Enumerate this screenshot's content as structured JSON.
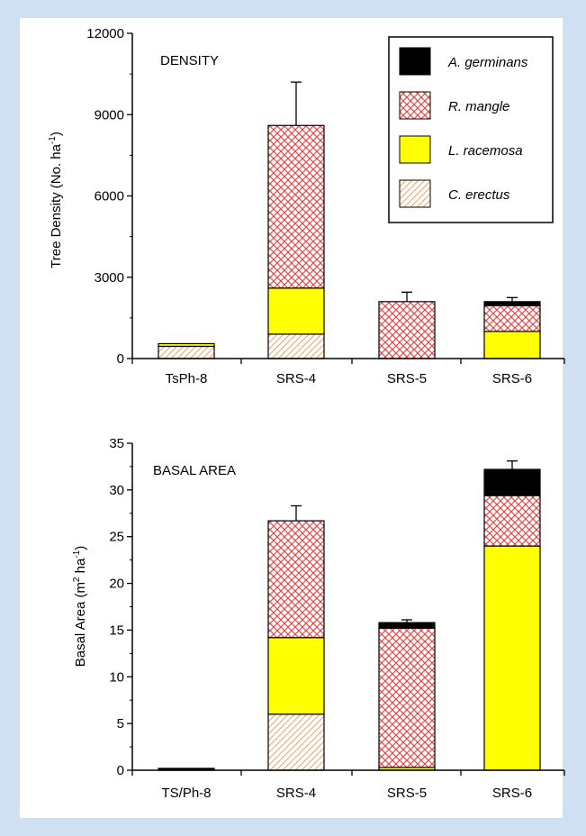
{
  "colors": {
    "page_background": "#cfe0f2",
    "panel_background": "#ffffff",
    "a_germinans": "#000000",
    "r_mangle_hatch": "#e84848",
    "l_racemosa": "#ffff00",
    "c_erectus_hatch": "#f0a868"
  },
  "legend": {
    "a_germinans": "A. germinans",
    "r_mangle": "R. mangle",
    "l_racemosa": "L. racemosa",
    "c_erectus": "C. erectus"
  },
  "chart_data": [
    {
      "type": "bar",
      "stacked": true,
      "title": "DENSITY",
      "ylabel": "Tree Density (No. ha-1)",
      "ylabel_main": "Tree Density (No. ha",
      "ylabel_sup": "-1",
      "ylabel_tail": ")",
      "ylim": [
        0,
        12000
      ],
      "yticks": [
        0,
        3000,
        6000,
        9000,
        12000
      ],
      "ytick_labels": [
        "0",
        "3000",
        "6000",
        "9000",
        "12000"
      ],
      "categories": [
        "TsPh-8",
        "SRS-4",
        "SRS-5",
        "SRS-6"
      ],
      "series": [
        {
          "name": "C. erectus",
          "key": "c_erectus",
          "values": [
            450,
            900,
            0,
            0
          ]
        },
        {
          "name": "L. racemosa",
          "key": "l_racemosa",
          "values": [
            100,
            1700,
            0,
            1000
          ]
        },
        {
          "name": "R. mangle",
          "key": "r_mangle",
          "values": [
            0,
            6000,
            2100,
            950
          ]
        },
        {
          "name": "A. germinans",
          "key": "a_germinans",
          "values": [
            0,
            0,
            0,
            150
          ]
        }
      ],
      "error_bar_tops": [
        null,
        10200,
        2450,
        2250
      ],
      "legend_position": "top-right",
      "grid": false
    },
    {
      "type": "bar",
      "stacked": true,
      "title": "BASAL AREA",
      "ylabel": "Basal Area (m2 ha-1)",
      "ylabel_main": "Basal Area (m",
      "ylabel_sup": "2",
      "ylabel_mid": " ha",
      "ylabel_sup2": "-1",
      "ylabel_tail": ")",
      "ylim": [
        0,
        35
      ],
      "yticks": [
        0,
        5,
        10,
        15,
        20,
        25,
        30,
        35
      ],
      "ytick_labels": [
        "0",
        "5",
        "10",
        "15",
        "20",
        "25",
        "30",
        "35"
      ],
      "categories": [
        "TS/Ph-8",
        "SRS-4",
        "SRS-5",
        "SRS-6"
      ],
      "series": [
        {
          "name": "C. erectus",
          "key": "c_erectus",
          "values": [
            0,
            6,
            0,
            0
          ]
        },
        {
          "name": "L. racemosa",
          "key": "l_racemosa",
          "values": [
            0,
            8.2,
            0.3,
            24
          ]
        },
        {
          "name": "R. mangle",
          "key": "r_mangle",
          "values": [
            0,
            12.5,
            14.9,
            5.4
          ]
        },
        {
          "name": "A. germinans",
          "key": "a_germinans",
          "values": [
            0.2,
            0,
            0.6,
            2.8
          ]
        }
      ],
      "error_bar_tops": [
        null,
        28.3,
        16.1,
        33.1
      ],
      "grid": false
    }
  ]
}
